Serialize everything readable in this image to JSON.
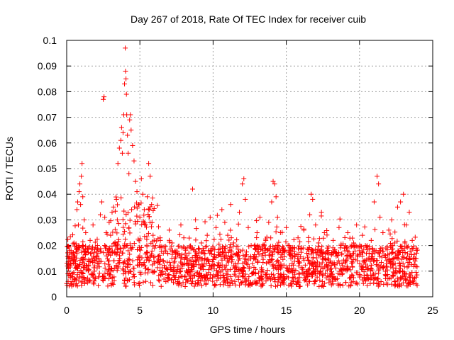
{
  "chart_data": {
    "type": "scatter",
    "title": "Day 267 of 2018, Rate Of TEC Index for receiver cuib",
    "xlabel": "GPS time / hours",
    "ylabel": "ROTI / TECUs",
    "xlim": [
      0,
      25
    ],
    "ylim": [
      0,
      0.1
    ],
    "xticks": [
      0,
      5,
      10,
      15,
      20,
      25
    ],
    "yticks": [
      0,
      0.01,
      0.02,
      0.03,
      0.04,
      0.05,
      0.06,
      0.07,
      0.08,
      0.09,
      0.1
    ],
    "xtick_labels": [
      "0",
      "5",
      "10",
      "15",
      "20",
      "25"
    ],
    "ytick_labels": [
      "0",
      "0.01",
      "0.02",
      "0.03",
      "0.04",
      "0.05",
      "0.06",
      "0.07",
      "0.08",
      "0.09",
      "0.1"
    ],
    "grid": true,
    "marker": "+",
    "color": "#ff0000",
    "series": [
      {
        "points": [
          [
            0.05,
            0.012
          ],
          [
            0.1,
            0.006
          ],
          [
            0.2,
            0.015
          ],
          [
            0.3,
            0.018
          ],
          [
            0.4,
            0.009
          ],
          [
            0.5,
            0.021
          ],
          [
            0.6,
            0.013
          ],
          [
            0.7,
            0.034
          ],
          [
            0.75,
            0.037
          ],
          [
            0.8,
            0.028
          ],
          [
            0.85,
            0.041
          ],
          [
            0.9,
            0.044
          ],
          [
            0.95,
            0.036
          ],
          [
            1.0,
            0.047
          ],
          [
            1.05,
            0.052
          ],
          [
            1.1,
            0.039
          ],
          [
            1.2,
            0.03
          ],
          [
            1.3,
            0.025
          ],
          [
            1.4,
            0.019
          ],
          [
            1.5,
            0.012
          ],
          [
            1.6,
            0.022
          ],
          [
            1.7,
            0.017
          ],
          [
            1.8,
            0.028
          ],
          [
            1.9,
            0.01
          ],
          [
            2.0,
            0.014
          ],
          [
            2.1,
            0.02
          ],
          [
            2.2,
            0.015
          ],
          [
            2.3,
            0.032
          ],
          [
            2.4,
            0.037
          ],
          [
            2.5,
            0.077
          ],
          [
            2.55,
            0.078
          ],
          [
            2.6,
            0.031
          ],
          [
            2.7,
            0.025
          ],
          [
            2.8,
            0.018
          ],
          [
            2.9,
            0.029
          ],
          [
            3.0,
            0.024
          ],
          [
            3.1,
            0.033
          ],
          [
            3.2,
            0.035
          ],
          [
            3.3,
            0.021
          ],
          [
            3.4,
            0.038
          ],
          [
            3.5,
            0.052
          ],
          [
            3.6,
            0.058
          ],
          [
            3.7,
            0.061
          ],
          [
            3.75,
            0.066
          ],
          [
            3.8,
            0.056
          ],
          [
            3.85,
            0.064
          ],
          [
            3.9,
            0.071
          ],
          [
            3.95,
            0.083
          ],
          [
            4.0,
            0.097
          ],
          [
            4.02,
            0.088
          ],
          [
            4.05,
            0.085
          ],
          [
            4.08,
            0.079
          ],
          [
            4.1,
            0.071
          ],
          [
            4.15,
            0.063
          ],
          [
            4.2,
            0.056
          ],
          [
            4.25,
            0.048
          ],
          [
            4.3,
            0.069
          ],
          [
            4.35,
            0.071
          ],
          [
            4.4,
            0.065
          ],
          [
            4.5,
            0.059
          ],
          [
            4.6,
            0.053
          ],
          [
            4.7,
            0.045
          ],
          [
            4.8,
            0.041
          ],
          [
            4.9,
            0.036
          ],
          [
            5.0,
            0.031
          ],
          [
            5.1,
            0.046
          ],
          [
            5.2,
            0.04
          ],
          [
            5.3,
            0.034
          ],
          [
            5.4,
            0.028
          ],
          [
            5.5,
            0.039
          ],
          [
            5.6,
            0.052
          ],
          [
            5.7,
            0.047
          ],
          [
            5.8,
            0.036
          ],
          [
            5.9,
            0.024
          ],
          [
            6.0,
            0.019
          ],
          [
            6.2,
            0.014
          ],
          [
            6.4,
            0.022
          ],
          [
            6.6,
            0.017
          ],
          [
            6.8,
            0.011
          ],
          [
            7.0,
            0.026
          ],
          [
            7.2,
            0.021
          ],
          [
            7.4,
            0.015
          ],
          [
            7.6,
            0.012
          ],
          [
            7.8,
            0.028
          ],
          [
            8.0,
            0.023
          ],
          [
            8.2,
            0.016
          ],
          [
            8.4,
            0.01
          ],
          [
            8.6,
            0.042
          ],
          [
            8.8,
            0.03
          ],
          [
            9.0,
            0.014
          ],
          [
            9.2,
            0.021
          ],
          [
            9.4,
            0.008
          ],
          [
            9.6,
            0.024
          ],
          [
            9.8,
            0.031
          ],
          [
            10.0,
            0.019
          ],
          [
            10.2,
            0.027
          ],
          [
            10.4,
            0.012
          ],
          [
            10.6,
            0.034
          ],
          [
            10.8,
            0.029
          ],
          [
            11.0,
            0.024
          ],
          [
            11.2,
            0.036
          ],
          [
            11.4,
            0.021
          ],
          [
            11.6,
            0.017
          ],
          [
            11.8,
            0.033
          ],
          [
            12.0,
            0.044
          ],
          [
            12.1,
            0.046
          ],
          [
            12.2,
            0.038
          ],
          [
            12.4,
            0.027
          ],
          [
            12.6,
            0.02
          ],
          [
            12.8,
            0.015
          ],
          [
            13.0,
            0.025
          ],
          [
            13.2,
            0.031
          ],
          [
            13.4,
            0.018
          ],
          [
            13.6,
            0.022
          ],
          [
            13.8,
            0.029
          ],
          [
            14.0,
            0.037
          ],
          [
            14.1,
            0.045
          ],
          [
            14.2,
            0.044
          ],
          [
            14.3,
            0.039
          ],
          [
            14.4,
            0.031
          ],
          [
            14.6,
            0.025
          ],
          [
            14.8,
            0.018
          ],
          [
            15.0,
            0.027
          ],
          [
            15.2,
            0.02
          ],
          [
            15.4,
            0.013
          ],
          [
            15.6,
            0.016
          ],
          [
            15.8,
            0.023
          ],
          [
            16.0,
            0.019
          ],
          [
            16.2,
            0.026
          ],
          [
            16.4,
            0.017
          ],
          [
            16.6,
            0.032
          ],
          [
            16.7,
            0.04
          ],
          [
            16.8,
            0.038
          ],
          [
            17.0,
            0.028
          ],
          [
            17.2,
            0.021
          ],
          [
            17.4,
            0.033
          ],
          [
            17.6,
            0.025
          ],
          [
            17.8,
            0.019
          ],
          [
            18.0,
            0.014
          ],
          [
            18.2,
            0.022
          ],
          [
            18.4,
            0.017
          ],
          [
            18.6,
            0.027
          ],
          [
            18.8,
            0.013
          ],
          [
            19.0,
            0.019
          ],
          [
            19.2,
            0.025
          ],
          [
            19.4,
            0.016
          ],
          [
            19.6,
            0.021
          ],
          [
            19.8,
            0.028
          ],
          [
            20.0,
            0.018
          ],
          [
            20.2,
            0.024
          ],
          [
            20.4,
            0.02
          ],
          [
            20.6,
            0.015
          ],
          [
            20.8,
            0.022
          ],
          [
            21.0,
            0.037
          ],
          [
            21.2,
            0.047
          ],
          [
            21.3,
            0.044
          ],
          [
            21.4,
            0.031
          ],
          [
            21.6,
            0.025
          ],
          [
            21.8,
            0.019
          ],
          [
            22.0,
            0.026
          ],
          [
            22.2,
            0.03
          ],
          [
            22.4,
            0.021
          ],
          [
            22.6,
            0.035
          ],
          [
            22.8,
            0.037
          ],
          [
            23.0,
            0.04
          ],
          [
            23.2,
            0.028
          ],
          [
            23.4,
            0.033
          ],
          [
            23.6,
            0.022
          ],
          [
            23.8,
            0.015
          ],
          [
            23.9,
            0.019
          ]
        ],
        "baseline_band": [
          0.004,
          0.02
        ]
      }
    ]
  }
}
